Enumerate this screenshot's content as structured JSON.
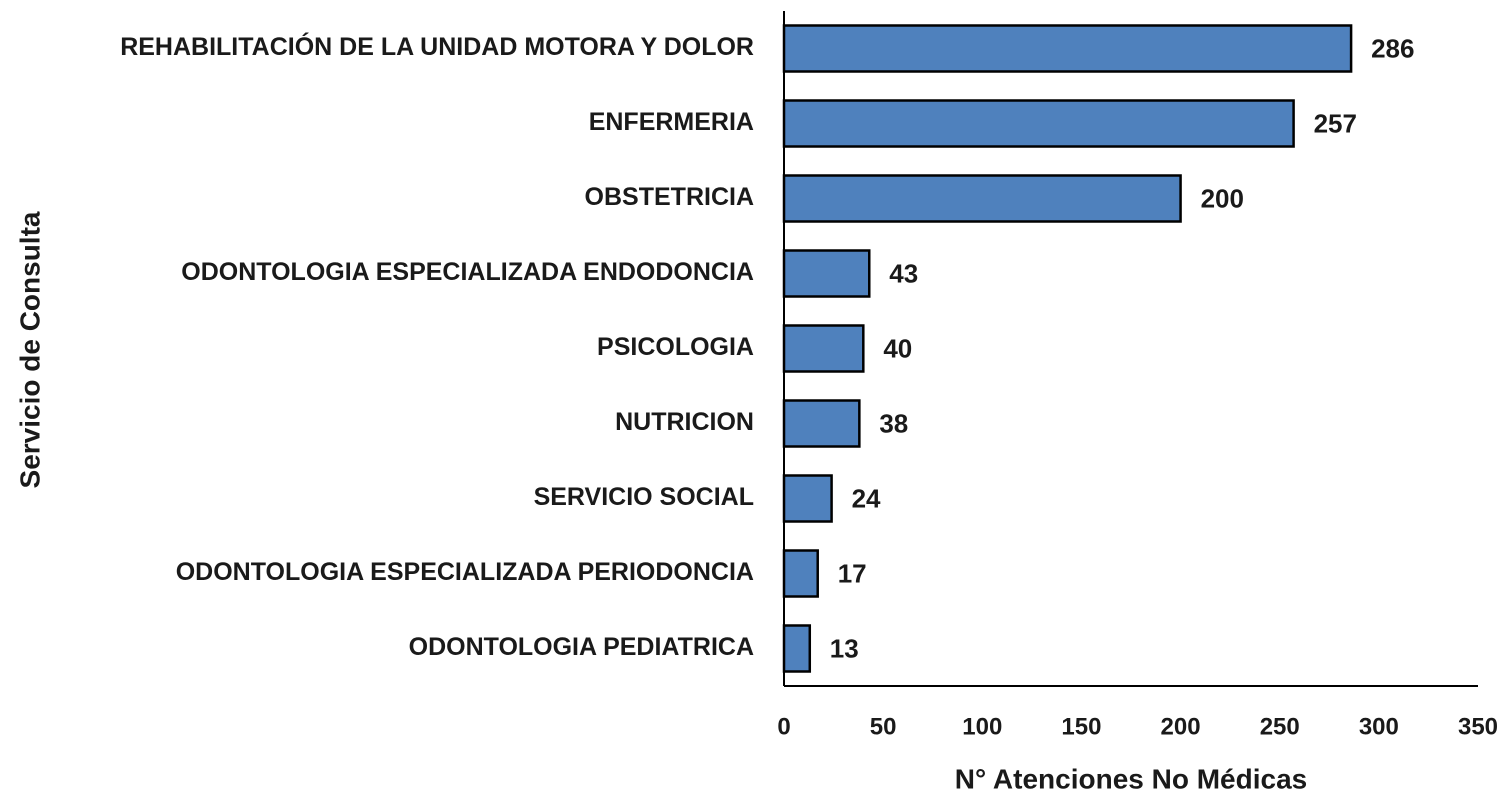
{
  "chart_data": {
    "type": "bar",
    "orientation": "horizontal",
    "xlabel": "N° Atenciones No Médicas",
    "ylabel": "Servicio de Consulta",
    "categories": [
      "REHABILITACIÓN DE LA UNIDAD MOTORA Y DOLOR",
      "ENFERMERIA",
      "OBSTETRICIA",
      "ODONTOLOGIA ESPECIALIZADA ENDODONCIA",
      "PSICOLOGIA",
      "NUTRICION",
      "SERVICIO SOCIAL",
      "ODONTOLOGIA ESPECIALIZADA PERIODONCIA",
      "ODONTOLOGIA PEDIATRICA"
    ],
    "values": [
      286,
      257,
      200,
      43,
      40,
      38,
      24,
      17,
      13
    ],
    "color": "#4f81bd",
    "xlim": [
      0,
      350
    ],
    "xticks": [
      0,
      50,
      100,
      150,
      200,
      250,
      300,
      350
    ],
    "grid": false
  }
}
